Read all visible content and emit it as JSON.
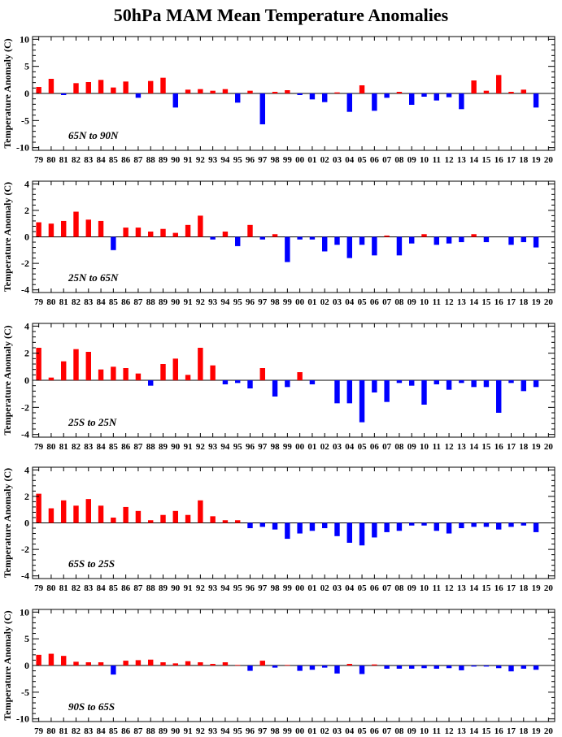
{
  "title": "50hPa MAM Mean Temperature Anomalies",
  "colors": {
    "positive": "#ff0000",
    "negative": "#0000ff",
    "axis": "#000000"
  },
  "chart_data": [
    {
      "type": "bar",
      "region_label": "65N to 90N",
      "ylabel": "Temperature Anomaly (C)",
      "ylim": [
        -10.5,
        10.5
      ],
      "yticks": [
        -10,
        -5,
        0,
        5,
        10
      ],
      "categories": [
        "79",
        "80",
        "81",
        "82",
        "83",
        "84",
        "85",
        "86",
        "87",
        "88",
        "89",
        "90",
        "91",
        "92",
        "93",
        "94",
        "95",
        "96",
        "97",
        "98",
        "99",
        "00",
        "01",
        "02",
        "03",
        "04",
        "05",
        "06",
        "07",
        "08",
        "09",
        "10",
        "11",
        "12",
        "13",
        "14",
        "15",
        "16",
        "17",
        "18",
        "19",
        "20"
      ],
      "values": [
        1.2,
        2.7,
        -0.3,
        1.9,
        2.1,
        2.5,
        1.1,
        2.2,
        -0.8,
        2.3,
        2.9,
        -2.6,
        0.7,
        0.8,
        0.5,
        0.8,
        -1.7,
        0.5,
        -5.7,
        0.3,
        0.6,
        -0.3,
        -1.1,
        -1.6,
        0.2,
        -3.4,
        1.5,
        -3.2,
        -0.8,
        0.3,
        -2.1,
        -0.6,
        -1.3,
        -0.7,
        -2.9,
        2.4,
        0.5,
        3.4,
        0.3,
        0.7,
        -2.6,
        0
      ]
    },
    {
      "type": "bar",
      "region_label": "25N to 65N",
      "ylabel": "Temperature Anomaly (C)",
      "ylim": [
        -4.2,
        4.2
      ],
      "yticks": [
        -4,
        -2,
        0,
        2,
        4
      ],
      "categories": [
        "79",
        "80",
        "81",
        "82",
        "83",
        "84",
        "85",
        "86",
        "87",
        "88",
        "89",
        "90",
        "91",
        "92",
        "93",
        "94",
        "95",
        "96",
        "97",
        "98",
        "99",
        "00",
        "01",
        "02",
        "03",
        "04",
        "05",
        "06",
        "07",
        "08",
        "09",
        "10",
        "11",
        "12",
        "13",
        "14",
        "15",
        "16",
        "17",
        "18",
        "19",
        "20"
      ],
      "values": [
        1.1,
        1.0,
        1.2,
        1.9,
        1.3,
        1.2,
        -1.0,
        0.7,
        0.7,
        0.4,
        0.6,
        0.3,
        0.9,
        1.6,
        -0.2,
        0.4,
        -0.7,
        0.9,
        -0.2,
        0.2,
        -1.9,
        -0.2,
        -0.2,
        -1.1,
        -0.6,
        -1.6,
        -0.6,
        -1.4,
        0.1,
        -1.4,
        -0.5,
        0.2,
        -0.6,
        -0.5,
        -0.4,
        0.2,
        -0.4,
        0,
        -0.6,
        -0.4,
        -0.8,
        0
      ]
    },
    {
      "type": "bar",
      "region_label": "25S to 25N",
      "ylabel": "Temperature Anomaly (C)",
      "ylim": [
        -4.2,
        4.2
      ],
      "yticks": [
        -4,
        -2,
        0,
        2,
        4
      ],
      "categories": [
        "79",
        "80",
        "81",
        "82",
        "83",
        "84",
        "85",
        "86",
        "87",
        "88",
        "89",
        "90",
        "91",
        "92",
        "93",
        "94",
        "95",
        "96",
        "97",
        "98",
        "99",
        "00",
        "01",
        "02",
        "03",
        "04",
        "05",
        "06",
        "07",
        "08",
        "09",
        "10",
        "11",
        "12",
        "13",
        "14",
        "15",
        "16",
        "17",
        "18",
        "19",
        "20"
      ],
      "values": [
        2.4,
        0.2,
        1.4,
        2.3,
        2.1,
        0.8,
        1.0,
        0.9,
        0.5,
        -0.4,
        1.2,
        1.6,
        0.4,
        2.4,
        1.1,
        -0.3,
        -0.2,
        -0.6,
        0.9,
        -1.2,
        -0.5,
        0.6,
        -0.3,
        0,
        -1.7,
        -1.7,
        -3.1,
        -0.9,
        -1.6,
        -0.2,
        -0.4,
        -1.8,
        -0.3,
        -0.7,
        -0.2,
        -0.5,
        -0.5,
        -2.4,
        -0.2,
        -0.8,
        -0.5,
        0
      ]
    },
    {
      "type": "bar",
      "region_label": "65S to 25S",
      "ylabel": "Temperature Anomaly (C)",
      "ylim": [
        -4.2,
        4.2
      ],
      "yticks": [
        -4,
        -2,
        0,
        2,
        4
      ],
      "categories": [
        "79",
        "80",
        "81",
        "82",
        "83",
        "84",
        "85",
        "86",
        "87",
        "88",
        "89",
        "90",
        "91",
        "92",
        "93",
        "94",
        "95",
        "96",
        "97",
        "98",
        "99",
        "00",
        "01",
        "02",
        "03",
        "04",
        "05",
        "06",
        "07",
        "08",
        "09",
        "10",
        "11",
        "12",
        "13",
        "14",
        "15",
        "16",
        "17",
        "18",
        "19",
        "20"
      ],
      "values": [
        2.2,
        1.1,
        1.7,
        1.3,
        1.8,
        1.3,
        0.4,
        1.2,
        0.9,
        0.2,
        0.6,
        0.9,
        0.6,
        1.7,
        0.5,
        0.2,
        0.2,
        -0.4,
        -0.3,
        -0.5,
        -1.2,
        -0.8,
        -0.6,
        -0.4,
        -1.0,
        -1.5,
        -1.7,
        -1.1,
        -0.7,
        -0.6,
        -0.2,
        -0.2,
        -0.6,
        -0.8,
        -0.4,
        -0.3,
        -0.3,
        -0.5,
        -0.3,
        -0.2,
        -0.7,
        0
      ]
    },
    {
      "type": "bar",
      "region_label": "90S to 65S",
      "ylabel": "Temperature Anomaly (C)",
      "ylim": [
        -10.5,
        10.5
      ],
      "yticks": [
        -10,
        -5,
        0,
        5,
        10
      ],
      "categories": [
        "79",
        "80",
        "81",
        "82",
        "83",
        "84",
        "85",
        "86",
        "87",
        "88",
        "89",
        "90",
        "91",
        "92",
        "93",
        "94",
        "95",
        "96",
        "97",
        "98",
        "99",
        "00",
        "01",
        "02",
        "03",
        "04",
        "05",
        "06",
        "07",
        "08",
        "09",
        "10",
        "11",
        "12",
        "13",
        "14",
        "15",
        "16",
        "17",
        "18",
        "19",
        "20"
      ],
      "values": [
        2.0,
        2.2,
        1.8,
        0.7,
        0.6,
        0.6,
        -1.7,
        0.9,
        1.0,
        1.1,
        0.6,
        0.4,
        0.8,
        0.6,
        0.3,
        0.6,
        0.1,
        -1.0,
        0.9,
        -0.4,
        0.1,
        -1.0,
        -0.8,
        -0.4,
        -1.5,
        0.3,
        -1.6,
        0.2,
        -0.6,
        -0.6,
        -0.6,
        -0.5,
        -0.6,
        -0.5,
        -0.9,
        -0.2,
        -0.2,
        -0.5,
        -1.1,
        -0.6,
        -0.8,
        0
      ]
    }
  ]
}
